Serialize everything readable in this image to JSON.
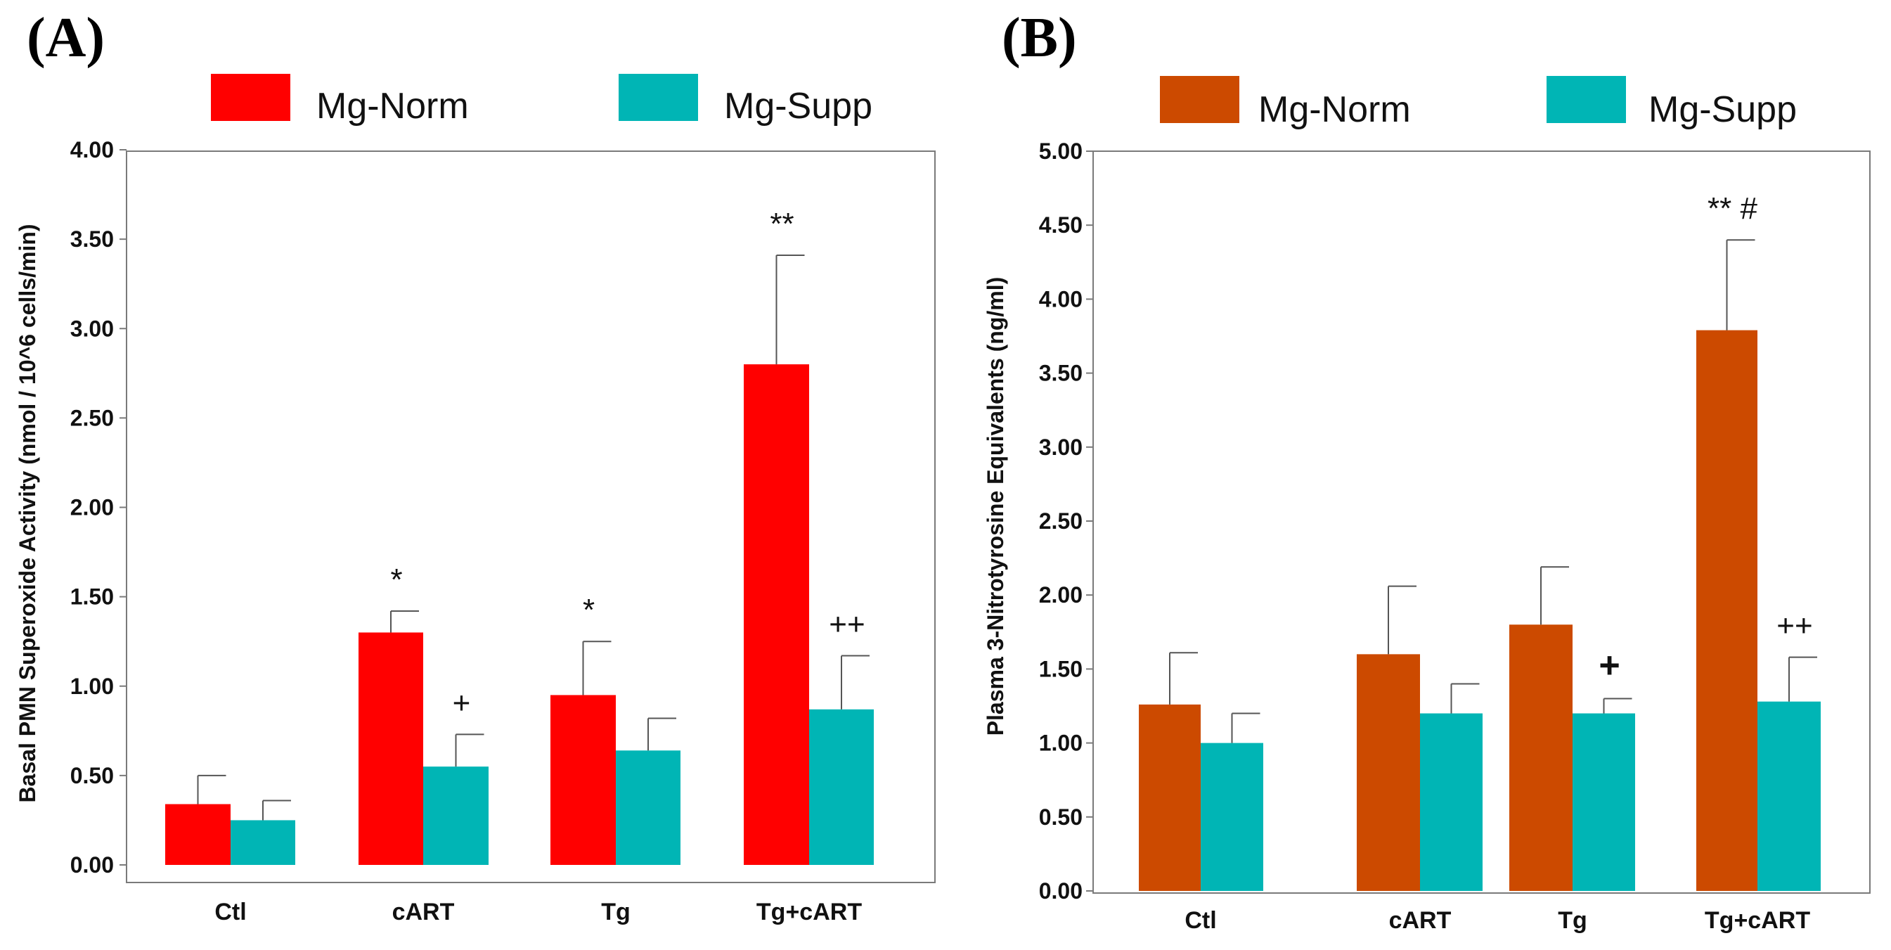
{
  "chart_data": [
    {
      "type": "bar",
      "panel": "(A)",
      "title": "",
      "xlabel": "",
      "ylabel": "Basal PMN Superoxide Activity (nmol / 10^6 cells/min)",
      "ylim": [
        0,
        4
      ],
      "yticks": [
        "0.00",
        "0.50",
        "1.00",
        "1.50",
        "2.00",
        "2.50",
        "3.00",
        "3.50",
        "4.00"
      ],
      "legend_position": "top",
      "categories": [
        "Ctl",
        "cART",
        "Tg",
        "Tg+cART"
      ],
      "series": [
        {
          "name": "Mg-Norm",
          "color": "#ff0000",
          "values": [
            0.34,
            1.3,
            0.95,
            2.8
          ],
          "errors": [
            0.16,
            0.12,
            0.3,
            0.61
          ]
        },
        {
          "name": "Mg-Supp",
          "color": "#00b5b5",
          "values": [
            0.25,
            0.55,
            0.64,
            0.87
          ],
          "errors": [
            0.11,
            0.18,
            0.18,
            0.3
          ]
        }
      ],
      "annotations": [
        {
          "series": 0,
          "category": 1,
          "text": "*"
        },
        {
          "series": 0,
          "category": 2,
          "text": "*"
        },
        {
          "series": 0,
          "category": 3,
          "text": "**"
        },
        {
          "series": 1,
          "category": 1,
          "text": "+"
        },
        {
          "series": 1,
          "category": 3,
          "text": "++"
        }
      ]
    },
    {
      "type": "bar",
      "panel": "(B)",
      "title": "",
      "xlabel": "",
      "ylabel": "Plasma 3-Nitrotyrosine Equivalents (ng/ml)",
      "ylim": [
        0,
        5
      ],
      "yticks": [
        "0.00",
        "0.50",
        "1.00",
        "1.50",
        "2.00",
        "2.50",
        "3.00",
        "3.50",
        "4.00",
        "4.50",
        "5.00"
      ],
      "legend_position": "top",
      "categories": [
        "Ctl",
        "cART",
        "Tg",
        "Tg+cART"
      ],
      "series": [
        {
          "name": "Mg-Norm",
          "color": "#cc4a00",
          "values": [
            1.26,
            1.6,
            1.8,
            3.79
          ],
          "errors": [
            0.35,
            0.46,
            0.39,
            0.61
          ]
        },
        {
          "name": "Mg-Supp",
          "color": "#00b5b5",
          "values": [
            1.0,
            1.2,
            1.2,
            1.28
          ],
          "errors": [
            0.2,
            0.2,
            0.1,
            0.3
          ]
        }
      ],
      "annotations": [
        {
          "series": 0,
          "category": 3,
          "text": "** #"
        },
        {
          "series": 1,
          "category": 2,
          "text": "+",
          "bold": true
        },
        {
          "series": 1,
          "category": 3,
          "text": "++"
        }
      ]
    }
  ]
}
